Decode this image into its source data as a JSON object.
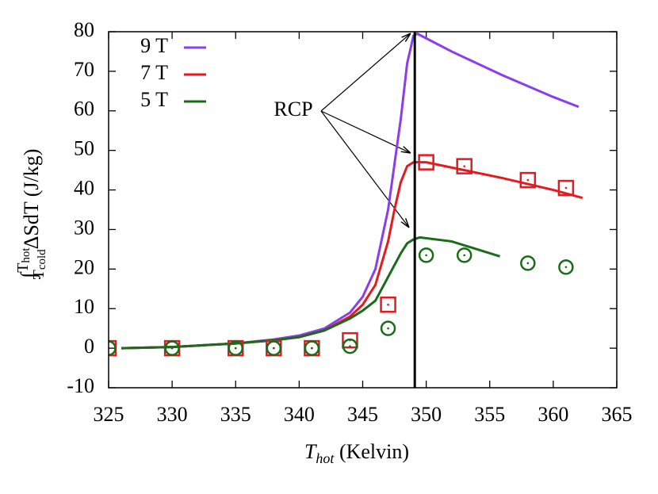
{
  "chart_data": {
    "type": "line",
    "xlabel": {
      "main": "T",
      "sub": "hot",
      "rest": " (Kelvin)"
    },
    "ylabel": {
      "integral": "∫",
      "upper": "T",
      "upper_sub": "hot",
      "lower": "T",
      "lower_sub": "cold",
      "rest": "ΔSdT (J/kg)"
    },
    "xlim": [
      325,
      365
    ],
    "xticks": [
      325,
      330,
      335,
      340,
      345,
      350,
      355,
      360,
      365
    ],
    "ylim": [
      -10,
      80
    ],
    "yticks": [
      -10,
      0,
      10,
      20,
      30,
      40,
      50,
      60,
      70,
      80
    ],
    "legend": "top-left",
    "vline": 349.1,
    "annotation": "RCP",
    "series": [
      {
        "name": "9 T",
        "color": "#8a3cf0",
        "style": "line",
        "x": [
          326,
          330,
          335,
          338,
          340,
          342,
          344,
          345,
          346,
          347,
          348,
          348.5,
          349,
          349.3,
          352,
          356,
          360,
          362
        ],
        "values": [
          0,
          0.3,
          1.2,
          2.2,
          3.2,
          5,
          9,
          13,
          20,
          35,
          58,
          72,
          79,
          79.5,
          75,
          69,
          63.5,
          61
        ]
      },
      {
        "name": "7 T",
        "color": "#e8191e",
        "style": "line",
        "x": [
          326,
          330,
          335,
          338,
          340,
          342,
          344,
          345,
          346,
          347,
          347.5,
          348,
          348.5,
          349,
          350,
          353,
          356,
          360,
          362.3
        ],
        "values": [
          0,
          0.3,
          1.2,
          2,
          2.8,
          4.5,
          8,
          11,
          16,
          27,
          35,
          42,
          46,
          47,
          47,
          45,
          43,
          40,
          38
        ]
      },
      {
        "name": "5 T",
        "color": "#1a6b1a",
        "style": "line",
        "x": [
          326,
          330,
          335,
          338,
          340,
          342,
          344,
          345,
          346,
          347,
          348,
          348.5,
          349,
          349.5,
          352,
          355.8
        ],
        "values": [
          0,
          0.3,
          1.2,
          2,
          2.8,
          4.5,
          7.5,
          9.5,
          12,
          18,
          24,
          26.5,
          27.5,
          28,
          27,
          23.2
        ]
      },
      {
        "color": "#e8191e",
        "style": "square",
        "x": [
          325,
          330,
          335,
          338,
          341,
          344,
          347,
          350,
          353,
          358,
          361
        ],
        "values": [
          0,
          0,
          0,
          0,
          0,
          2,
          11,
          47,
          46,
          42.5,
          40.5
        ]
      },
      {
        "color": "#1a6b1a",
        "style": "circle",
        "x": [
          325,
          330,
          335,
          338,
          341,
          344,
          347,
          350,
          353,
          358,
          361
        ],
        "values": [
          0,
          0,
          0,
          0,
          0,
          0.5,
          5,
          23.5,
          23.5,
          21.5,
          20.5
        ]
      }
    ]
  }
}
